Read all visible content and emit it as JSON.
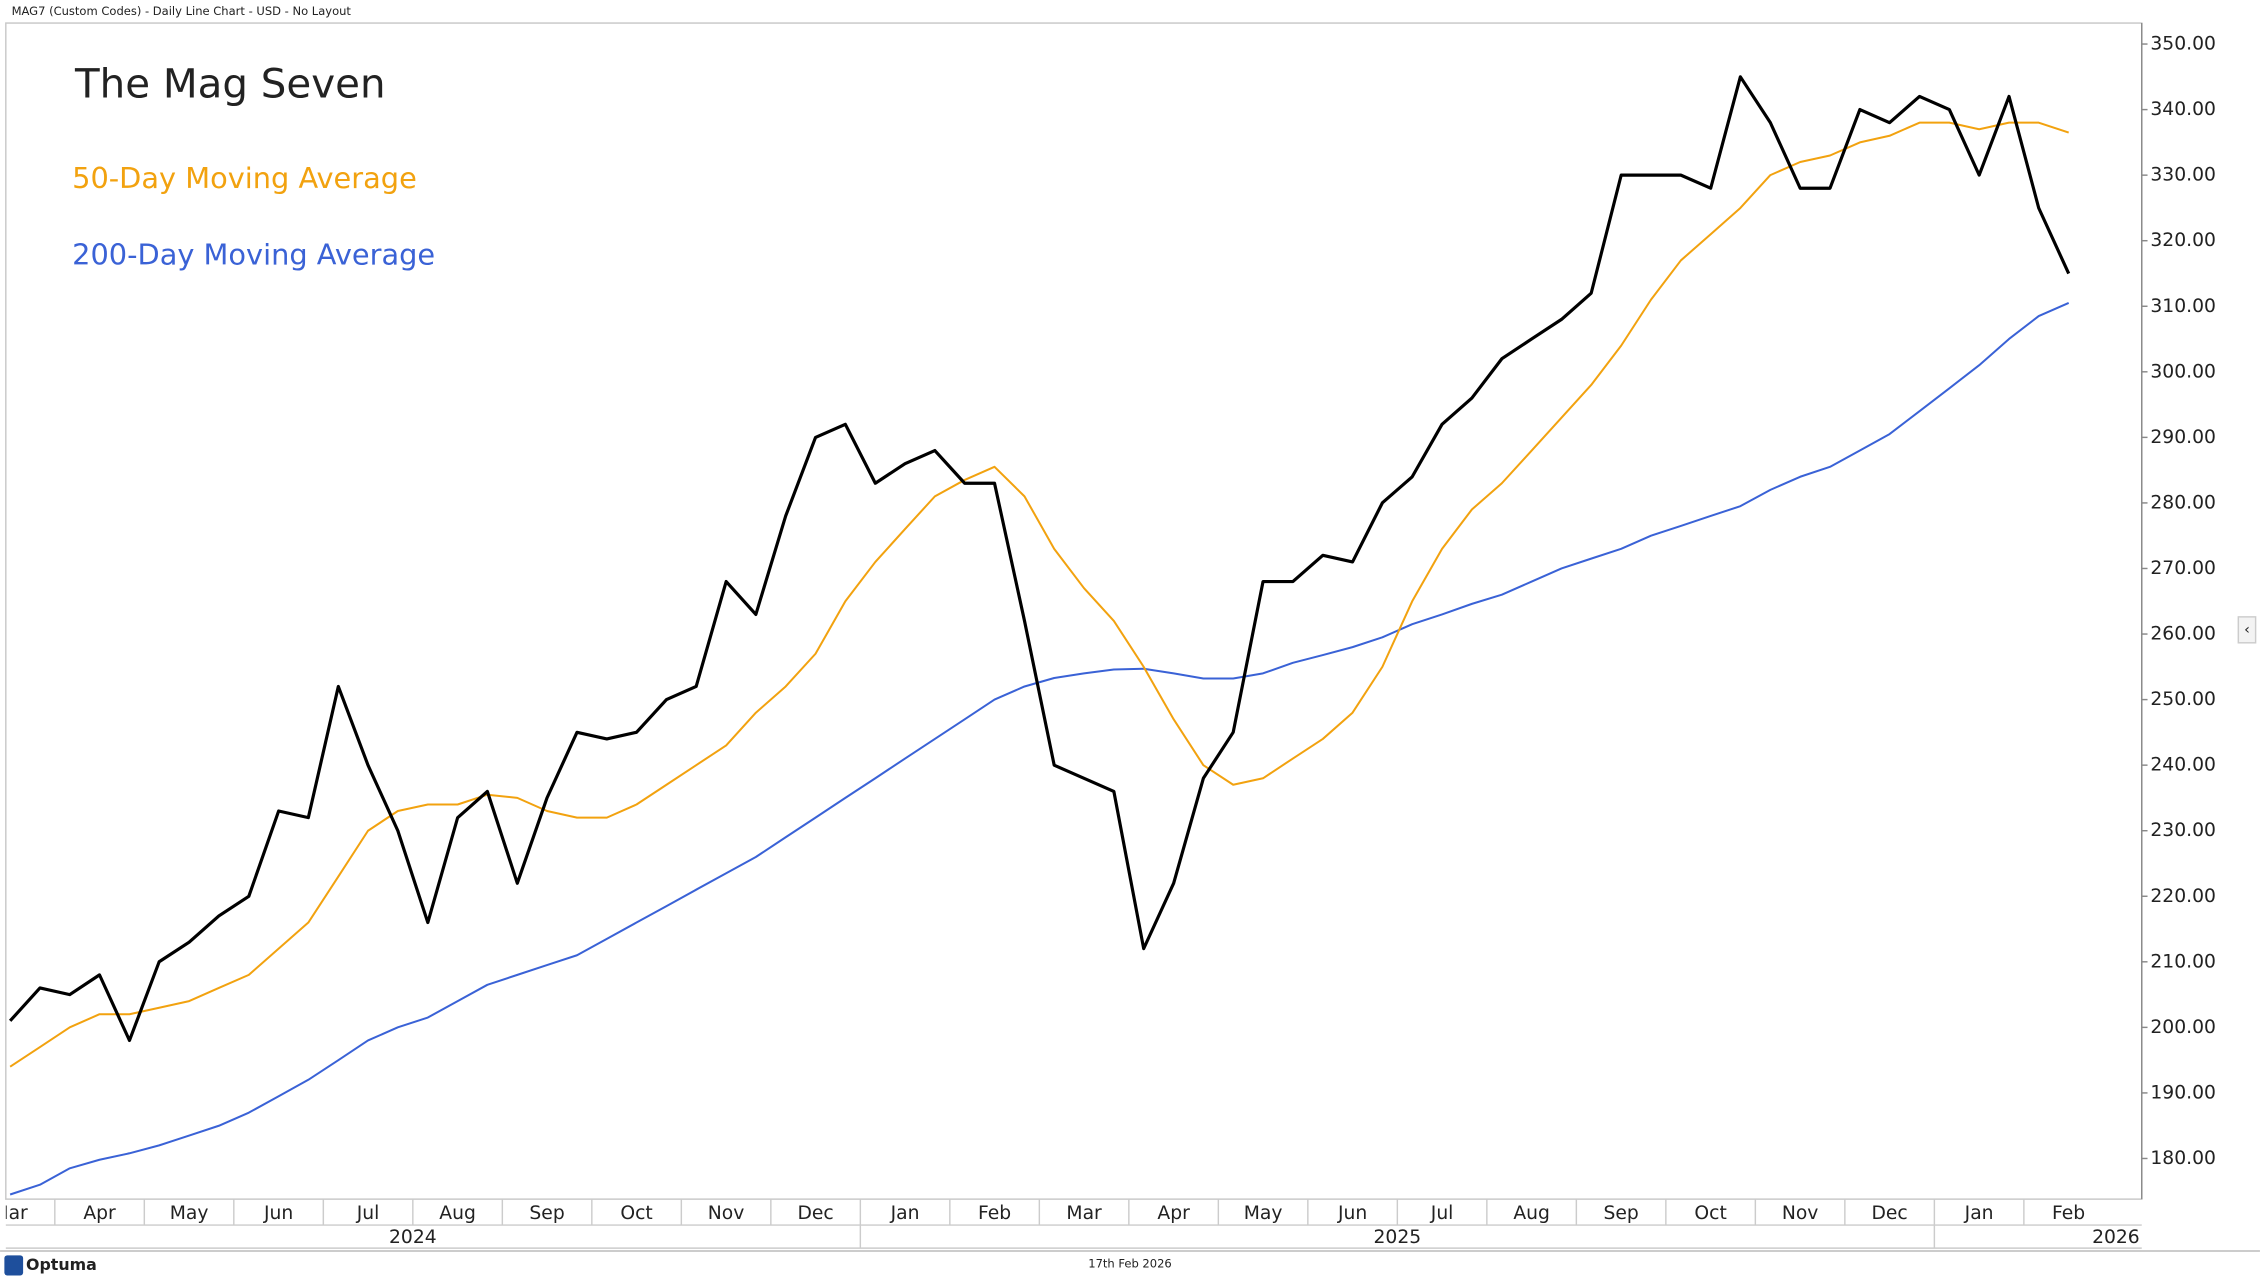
{
  "header": "MAG7 (Custom Codes) - Daily Line Chart - USD - No Layout",
  "footer": {
    "brand": "Optuma",
    "date": "17th Feb 2026"
  },
  "chart_data": {
    "type": "line",
    "title": "The Mag Seven",
    "categories": [
      "Mar",
      null,
      null,
      "Apr",
      null,
      null,
      "May",
      null,
      null,
      "Jun",
      null,
      null,
      "Jul",
      null,
      null,
      "Aug",
      null,
      null,
      "Sep",
      null,
      null,
      "Oct",
      null,
      null,
      "Nov",
      null,
      null,
      "Dec",
      null,
      null,
      "Jan",
      null,
      null,
      "Feb",
      null,
      null,
      "Mar",
      null,
      null,
      "Apr",
      null,
      null,
      "May",
      null,
      null,
      "Jun",
      null,
      null,
      "Jul",
      null,
      null,
      "Aug",
      null,
      null,
      "Sep",
      null,
      null,
      "Oct",
      null,
      null,
      "Nov",
      null,
      null,
      "Dec",
      null,
      null,
      "Jan",
      null,
      null,
      "Feb",
      null,
      null
    ],
    "years": [
      "2024",
      "2025",
      "2026"
    ],
    "series": [
      {
        "color": "#000000",
        "values": [
          null,
          201,
          206,
          205,
          208,
          198,
          210,
          213,
          217,
          220,
          233,
          232,
          252,
          240,
          230,
          216,
          232,
          236,
          222,
          235,
          245,
          244,
          245,
          250,
          252,
          268,
          263,
          278,
          290,
          292,
          283,
          286,
          288,
          283,
          283,
          262,
          240,
          238,
          236,
          212,
          222,
          238,
          245,
          268,
          268,
          272,
          271,
          280,
          284,
          292,
          296,
          302,
          305,
          308,
          312,
          330,
          330,
          330,
          328,
          345,
          338,
          328,
          328,
          340,
          338,
          342,
          340,
          330,
          342,
          325,
          315,
          null
        ]
      },
      {
        "name": "50-Day Moving Average",
        "color": "#f2a20f",
        "values": [
          null,
          194,
          197,
          200,
          202,
          202,
          203,
          204,
          206,
          208,
          212,
          216,
          223,
          230,
          233,
          234,
          234,
          235.5,
          235,
          233,
          232,
          232,
          234,
          237,
          240,
          243,
          248,
          252,
          257,
          265,
          271,
          276,
          281,
          283.5,
          285.5,
          281,
          273,
          267,
          262,
          255,
          247,
          240,
          237,
          238,
          241,
          244,
          248,
          255,
          265,
          273,
          279,
          283,
          288,
          293,
          298,
          304,
          311,
          317,
          321,
          325,
          330,
          332,
          333,
          335,
          336,
          338,
          338,
          337,
          338,
          338,
          336.5,
          null
        ]
      },
      {
        "name": "200-Day Moving Average",
        "color": "#3a62d6",
        "values": [
          null,
          174.5,
          176,
          178.5,
          179.8,
          180.8,
          182,
          183.5,
          185,
          187,
          189.5,
          192,
          195,
          198,
          200,
          201.5,
          204,
          206.5,
          208,
          209.5,
          211,
          213.5,
          216,
          218.5,
          221,
          223.5,
          226,
          229,
          232,
          235,
          238,
          241,
          244,
          247,
          250,
          252,
          253.3,
          254,
          254.6,
          254.7,
          254,
          253.2,
          253.2,
          254,
          255.6,
          256.8,
          258,
          259.5,
          261.5,
          263,
          264.6,
          266,
          268,
          270,
          271.5,
          273,
          275,
          276.5,
          278,
          279.5,
          282,
          284,
          285.5,
          288,
          290.5,
          294,
          297.5,
          301,
          305,
          308.5,
          310.5,
          null
        ]
      }
    ],
    "ylim": [
      173.8,
      353.2
    ],
    "yticks": [
      {
        "value": 180,
        "label": "180.00"
      },
      {
        "value": 190,
        "label": "190.00"
      },
      {
        "value": 200,
        "label": "200.00"
      },
      {
        "value": 210,
        "label": "210.00"
      },
      {
        "value": 220,
        "label": "220.00"
      },
      {
        "value": 230,
        "label": "230.00"
      },
      {
        "value": 240,
        "label": "240.00"
      },
      {
        "value": 250,
        "label": "250.00"
      },
      {
        "value": 260,
        "label": "260.00"
      },
      {
        "value": 270,
        "label": "270.00"
      },
      {
        "value": 280,
        "label": "280.00"
      },
      {
        "value": 290,
        "label": "290.00"
      },
      {
        "value": 300,
        "label": "300.00"
      },
      {
        "value": 310,
        "label": "310.00"
      },
      {
        "value": 320,
        "label": "320.00"
      },
      {
        "value": 330,
        "label": "330.00"
      },
      {
        "value": 340,
        "label": "340.00"
      },
      {
        "value": 350,
        "label": "350.00"
      }
    ],
    "grid": false
  }
}
